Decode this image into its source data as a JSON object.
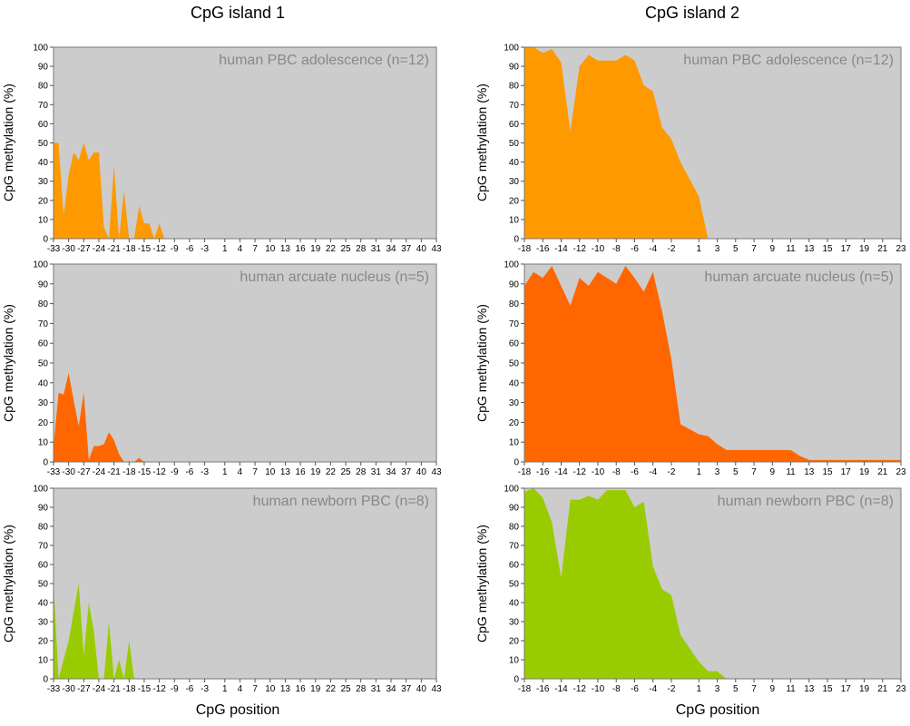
{
  "figure": {
    "column_titles": [
      "CpG island 1",
      "CpG island 2"
    ],
    "xlabel": "CpG position",
    "ylabel": "CpG methylation (%)"
  },
  "colors": {
    "plot_bg": "#cccccc",
    "adolescence": "#ff9900",
    "arcuate": "#ff6600",
    "newborn": "#99cc00",
    "panel_label": "#888888"
  },
  "chart_data": [
    {
      "type": "area",
      "title": "human PBC adolescence (n=12)",
      "xlabel": "",
      "ylabel": "CpG methylation (%)",
      "x_ticks": [
        "-33",
        "-30",
        "-27",
        "-24",
        "-21",
        "-18",
        "-15",
        "-12",
        "-9",
        "-6",
        "-3",
        "1",
        "4",
        "7",
        "10",
        "13",
        "16",
        "19",
        "22",
        "25",
        "28",
        "31",
        "34",
        "37",
        "40",
        "43"
      ],
      "ylim": [
        0,
        100
      ],
      "y_ticks": [
        0,
        10,
        20,
        30,
        40,
        50,
        60,
        70,
        80,
        90,
        100
      ],
      "color": "adolescence",
      "series": [
        {
          "x": [
            -33,
            -32,
            -31,
            -30,
            -29,
            -28,
            -27,
            -26,
            -25,
            -24,
            -23,
            -22,
            -21,
            -20,
            -19,
            -18,
            -17,
            -16,
            -15,
            -14,
            -13,
            -12,
            -11,
            -10,
            -9,
            -6,
            -3,
            1,
            4,
            7,
            10,
            13,
            16,
            19,
            22,
            25,
            28,
            31,
            34,
            37,
            40,
            43
          ],
          "values": [
            50,
            50,
            12,
            33,
            45,
            41,
            50,
            41,
            45,
            45,
            6,
            0,
            38,
            0,
            25,
            0,
            0,
            17,
            8,
            8,
            0,
            8,
            0,
            0,
            0,
            0,
            0,
            0,
            0,
            0,
            0,
            0,
            0,
            0,
            0,
            0,
            0,
            0,
            0,
            0,
            0,
            0
          ]
        }
      ]
    },
    {
      "type": "area",
      "title": "human PBC adolescence (n=12)",
      "xlabel": "",
      "ylabel": "CpG methylation (%)",
      "x_ticks": [
        "-18",
        "-16",
        "-14",
        "-12",
        "-10",
        "-8",
        "-6",
        "-4",
        "-2",
        "1",
        "3",
        "5",
        "7",
        "9",
        "11",
        "13",
        "15",
        "17",
        "19",
        "21",
        "23"
      ],
      "ylim": [
        0,
        100
      ],
      "y_ticks": [
        0,
        10,
        20,
        30,
        40,
        50,
        60,
        70,
        80,
        90,
        100
      ],
      "color": "adolescence",
      "series": [
        {
          "x": [
            -18,
            -17,
            -16,
            -15,
            -14,
            -13,
            -12,
            -11,
            -10,
            -9,
            -8,
            -7,
            -6,
            -5,
            -4,
            -3,
            -2,
            -1,
            1,
            2,
            3,
            4,
            5,
            6,
            7,
            8,
            9,
            10,
            11,
            12,
            13,
            14,
            15,
            16,
            17,
            18,
            19,
            20,
            21,
            22,
            23
          ],
          "values": [
            100,
            100,
            97,
            99,
            92,
            56,
            90,
            96,
            93,
            93,
            93,
            96,
            93,
            80,
            77,
            58,
            52,
            40,
            22,
            0,
            0,
            0,
            0,
            0,
            0,
            0,
            0,
            0,
            0,
            0,
            0,
            0,
            0,
            0,
            0,
            0,
            0,
            0,
            0,
            0,
            0
          ]
        }
      ]
    },
    {
      "type": "area",
      "title": "human arcuate nucleus (n=5)",
      "xlabel": "",
      "ylabel": "CpG methylation (%)",
      "x_ticks": [
        "-33",
        "-30",
        "-27",
        "-24",
        "-21",
        "-18",
        "-15",
        "-12",
        "-9",
        "-6",
        "-3",
        "1",
        "4",
        "7",
        "10",
        "13",
        "16",
        "19",
        "22",
        "25",
        "28",
        "31",
        "34",
        "37",
        "40",
        "43"
      ],
      "ylim": [
        0,
        100
      ],
      "y_ticks": [
        0,
        10,
        20,
        30,
        40,
        50,
        60,
        70,
        80,
        90,
        100
      ],
      "color": "arcuate",
      "series": [
        {
          "x": [
            -33,
            -32,
            -31,
            -30,
            -29,
            -28,
            -27,
            -26,
            -25,
            -24,
            -23,
            -22,
            -21,
            -20,
            -19,
            -18,
            -17,
            -16,
            -15,
            -14,
            -13,
            -12,
            -11,
            -10,
            -9,
            -6,
            -3,
            1,
            4,
            7,
            10,
            13,
            16,
            19,
            22,
            25,
            28,
            31,
            34,
            37,
            40,
            43
          ],
          "values": [
            8,
            35,
            34,
            45,
            31,
            18,
            35,
            1,
            8,
            8,
            9,
            15,
            11,
            4,
            0,
            0,
            0,
            2,
            0,
            0,
            0,
            0,
            0,
            0,
            0,
            0,
            0,
            0,
            0,
            0,
            0,
            0,
            0,
            0,
            0,
            0,
            0,
            0,
            0,
            0,
            0,
            0
          ]
        }
      ]
    },
    {
      "type": "area",
      "title": "human arcuate nucleus (n=5)",
      "xlabel": "",
      "ylabel": "CpG methylation (%)",
      "x_ticks": [
        "-18",
        "-16",
        "-14",
        "-12",
        "-10",
        "-8",
        "-6",
        "-4",
        "-2",
        "1",
        "3",
        "5",
        "7",
        "9",
        "11",
        "13",
        "15",
        "17",
        "19",
        "21",
        "23"
      ],
      "ylim": [
        0,
        100
      ],
      "y_ticks": [
        0,
        10,
        20,
        30,
        40,
        50,
        60,
        70,
        80,
        90,
        100
      ],
      "color": "arcuate",
      "series": [
        {
          "x": [
            -18,
            -17,
            -16,
            -15,
            -14,
            -13,
            -12,
            -11,
            -10,
            -9,
            -8,
            -7,
            -6,
            -5,
            -4,
            -3,
            -2,
            -1,
            1,
            2,
            3,
            4,
            5,
            6,
            7,
            8,
            9,
            10,
            11,
            12,
            13,
            14,
            15,
            16,
            17,
            18,
            19,
            20,
            21,
            22,
            23
          ],
          "values": [
            89,
            96,
            93,
            99,
            89,
            79,
            93,
            89,
            96,
            93,
            90,
            99,
            93,
            86,
            96,
            76,
            52,
            19,
            14,
            13,
            9,
            6,
            6,
            6,
            6,
            6,
            6,
            6,
            6,
            3,
            1,
            1,
            1,
            1,
            1,
            1,
            1,
            1,
            1,
            1,
            1
          ]
        }
      ]
    },
    {
      "type": "area",
      "title": "human newborn PBC (n=8)",
      "xlabel": "CpG position",
      "ylabel": "CpG methylation (%)",
      "x_ticks": [
        "-33",
        "-30",
        "-27",
        "-24",
        "-21",
        "-18",
        "-15",
        "-12",
        "-9",
        "-6",
        "-3",
        "1",
        "4",
        "7",
        "10",
        "13",
        "16",
        "19",
        "22",
        "25",
        "28",
        "31",
        "34",
        "37",
        "40",
        "43"
      ],
      "ylim": [
        0,
        100
      ],
      "y_ticks": [
        0,
        10,
        20,
        30,
        40,
        50,
        60,
        70,
        80,
        90,
        100
      ],
      "color": "newborn",
      "series": [
        {
          "x": [
            -33,
            -32,
            -31,
            -30,
            -29,
            -28,
            -27,
            -26,
            -25,
            -24,
            -23,
            -22,
            -21,
            -20,
            -19,
            -18,
            -17,
            -16,
            -15,
            -14,
            -13,
            -12,
            -11,
            -10,
            -9,
            -6,
            -3,
            1,
            4,
            7,
            10,
            13,
            16,
            19,
            22,
            25,
            28,
            31,
            34,
            37,
            40,
            43
          ],
          "values": [
            50,
            0,
            10,
            20,
            35,
            50,
            12,
            40,
            25,
            0,
            0,
            30,
            0,
            10,
            0,
            20,
            0,
            0,
            0,
            0,
            0,
            0,
            0,
            0,
            0,
            0,
            0,
            0,
            0,
            0,
            0,
            0,
            0,
            0,
            0,
            0,
            0,
            0,
            0,
            0,
            0,
            0
          ]
        }
      ]
    },
    {
      "type": "area",
      "title": "human newborn PBC (n=8)",
      "xlabel": "CpG position",
      "ylabel": "CpG methylation (%)",
      "x_ticks": [
        "-18",
        "-16",
        "-14",
        "-12",
        "-10",
        "-8",
        "-6",
        "-4",
        "-2",
        "1",
        "3",
        "5",
        "7",
        "9",
        "11",
        "13",
        "15",
        "17",
        "19",
        "21",
        "23"
      ],
      "ylim": [
        0,
        100
      ],
      "y_ticks": [
        0,
        10,
        20,
        30,
        40,
        50,
        60,
        70,
        80,
        90,
        100
      ],
      "color": "newborn",
      "series": [
        {
          "x": [
            -18,
            -17,
            -16,
            -15,
            -14,
            -13,
            -12,
            -11,
            -10,
            -9,
            -8,
            -7,
            -6,
            -5,
            -4,
            -3,
            -2,
            -1,
            1,
            2,
            3,
            4,
            5,
            6,
            7,
            8,
            9,
            10,
            11,
            12,
            13,
            14,
            15,
            16,
            17,
            18,
            19,
            20,
            21,
            22,
            23
          ],
          "values": [
            98,
            100,
            95,
            82,
            53,
            94,
            94,
            96,
            94,
            99,
            99,
            99,
            90,
            93,
            59,
            47,
            44,
            23,
            9,
            4,
            4,
            0,
            0,
            0,
            0,
            0,
            0,
            0,
            0,
            0,
            0,
            0,
            0,
            0,
            0,
            0,
            0,
            0,
            0,
            0,
            0
          ]
        }
      ]
    }
  ]
}
